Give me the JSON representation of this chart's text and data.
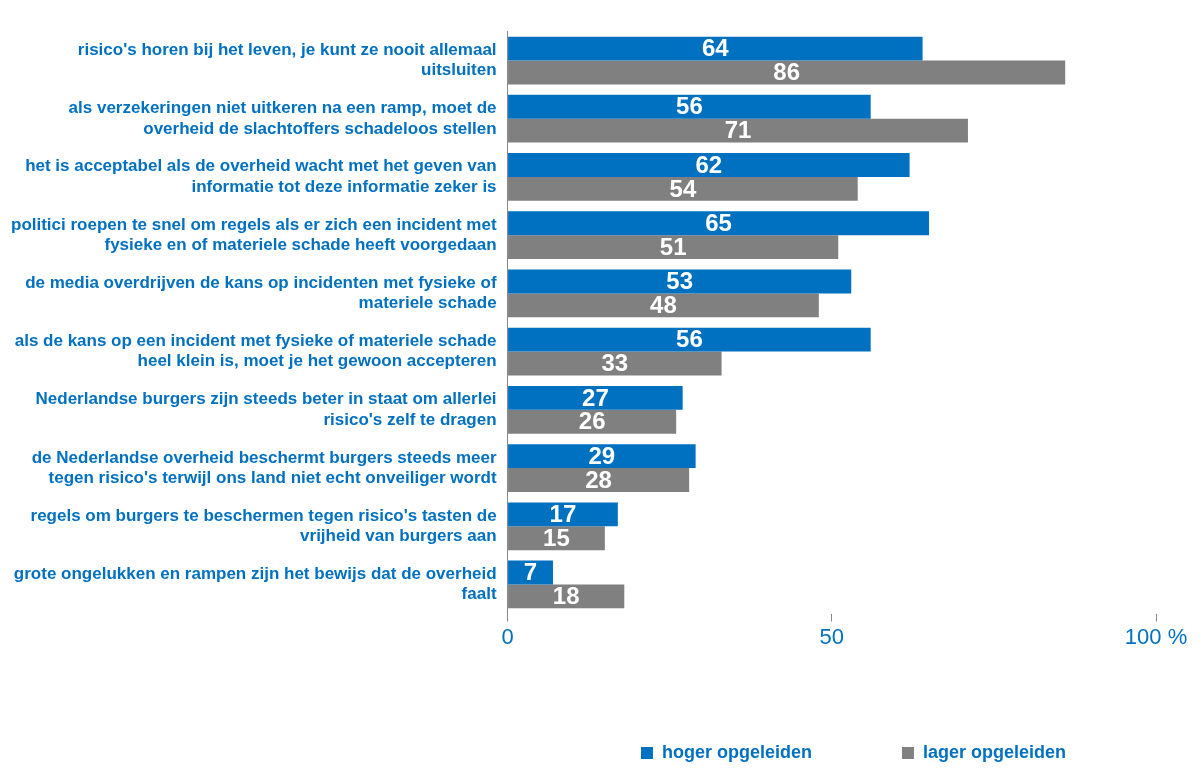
{
  "chart_data": {
    "type": "bar",
    "orientation": "horizontal",
    "categories": [
      "risico's horen bij het leven, je kunt ze nooit allemaal uitsluiten",
      "als verzekeringen niet uitkeren na een ramp, moet de overheid de slachtoffers schadeloos stellen",
      "het is acceptabel als de overheid wacht met het geven van informatie tot deze informatie zeker is",
      "politici roepen te snel om regels als er zich een incident met fysieke en of materiele schade heeft voorgedaan",
      "de media overdrijven de kans op incidenten met fysieke of materiele schade",
      "als de kans op een incident met fysieke of materiele schade heel klein is, moet je het gewoon accepteren",
      "Nederlandse burgers zijn steeds beter in staat om allerlei risico's zelf te dragen",
      "de Nederlandse overheid beschermt burgers steeds meer tegen risico's terwijl ons land niet echt onveiliger wordt",
      "regels om burgers te beschermen tegen risico's tasten de vrijheid van burgers aan",
      "grote ongelukken en rampen zijn het bewijs dat de overheid faalt"
    ],
    "series": [
      {
        "name": "hoger opgeleiden",
        "color": "#0070c0",
        "values": [
          64,
          56,
          62,
          65,
          53,
          56,
          27,
          29,
          17,
          7
        ]
      },
      {
        "name": "lager opgeleiden",
        "color": "#808080",
        "values": [
          86,
          71,
          54,
          51,
          48,
          33,
          26,
          28,
          15,
          18
        ]
      }
    ],
    "xlim": [
      0,
      100
    ],
    "xticks": [
      0,
      50,
      {
        "value": 100,
        "label": "100 %"
      }
    ],
    "data_labels": true,
    "grid": false,
    "legend": "bottom"
  }
}
